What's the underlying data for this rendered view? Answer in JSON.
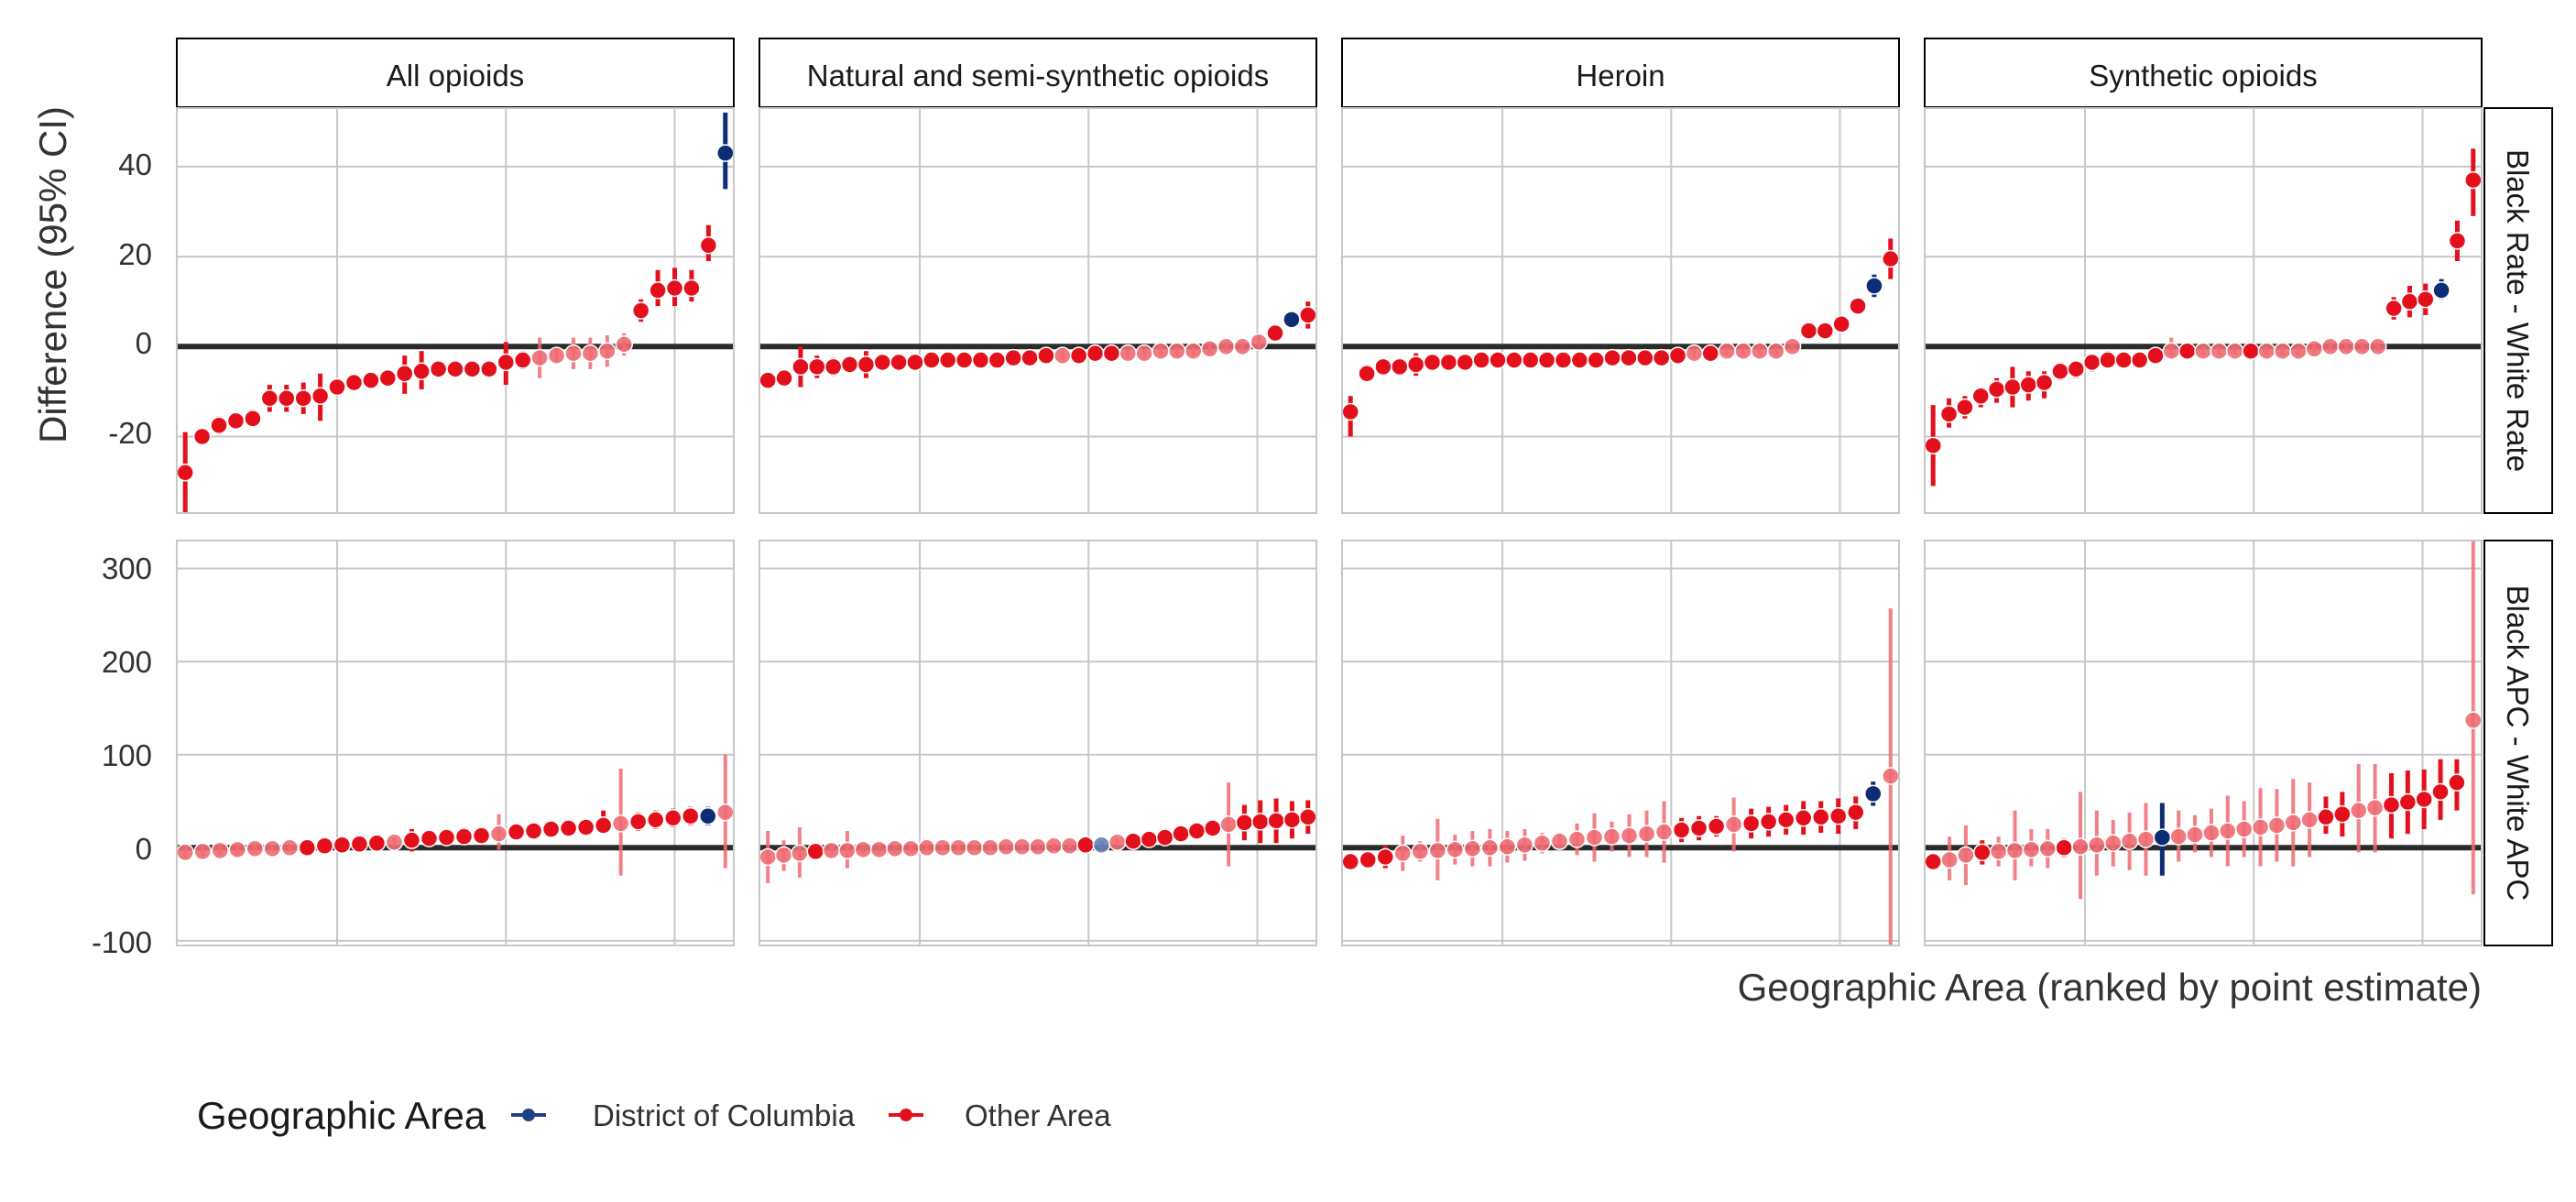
{
  "chart_data": {
    "type": "scatter",
    "variant": "faceted point-range (ranked)",
    "y_axis_label": "Difference (95% CI)",
    "x_axis_label": "Geographic Area (ranked by point estimate)",
    "columns": [
      "All opioids",
      "Natural and semi-synthetic opioids",
      "Heroin",
      "Synthetic opioids"
    ],
    "rows": [
      {
        "label": "Black Rate - White Rate",
        "ylim": [
          -37,
          53
        ],
        "yticks": [
          -20,
          0,
          20,
          40
        ],
        "tick_labels": [
          "-20",
          "0",
          "20",
          "40"
        ]
      },
      {
        "label": "Black APC - White APC",
        "ylim": [
          -105,
          330
        ],
        "yticks": [
          -100,
          0,
          100,
          200,
          300
        ],
        "tick_labels": [
          "-100",
          "0",
          "100",
          "200",
          "300"
        ]
      }
    ],
    "xlim": [
      0.5,
      33.5
    ],
    "x_grid": [
      10,
      20,
      30
    ],
    "legend": {
      "title": "Geographic Area",
      "position": "bottom-left",
      "entries": [
        {
          "label": "District of Columbia",
          "color": "#1f3f87"
        },
        {
          "label": "Other Area",
          "color": "#e3101b"
        }
      ]
    },
    "colors": {
      "dc": "#0c2c74",
      "other": "#e3101b",
      "other_ns": "#ee6b72",
      "dc_ns": "#6a80b6",
      "zero_line": "#2b2b2b",
      "grid": "#c8c8c8",
      "border": "#c8c8c8"
    },
    "panels": [
      {
        "row": 0,
        "col": 0,
        "est": [
          -28,
          -20,
          -17.5,
          -16.5,
          -16,
          -11.5,
          -11.5,
          -11.5,
          -11,
          -9,
          -8,
          -7.5,
          -7,
          -6,
          -5.5,
          -5,
          -5,
          -5,
          -5,
          -3.5,
          -3,
          -2.5,
          -2,
          -1.5,
          -1.5,
          -1,
          0.5,
          8,
          12.5,
          13,
          13,
          22.5,
          43
        ],
        "lo": [
          -38,
          -21.5,
          -19.5,
          -18,
          -17,
          -14.5,
          -14.5,
          -15,
          -16.5,
          -10,
          -8.5,
          -8,
          -8.5,
          -10.5,
          -9.5,
          -6.5,
          -6,
          -6,
          -6,
          -8.5,
          -5,
          -7,
          -3.5,
          -5,
          -5,
          -4.5,
          -2,
          5.5,
          9,
          9,
          10,
          19,
          35
        ],
        "hi": [
          -19,
          -19,
          -15.5,
          -15,
          -14,
          -8.5,
          -8.5,
          -8,
          -6,
          -8,
          -7.5,
          -7,
          -5.5,
          -2,
          -1,
          -3.5,
          -4,
          -4,
          -4,
          1,
          -1,
          2,
          -0.5,
          2,
          2,
          2.5,
          3,
          10.5,
          17,
          17.5,
          17,
          27,
          52
        ],
        "sig": [
          1,
          1,
          1,
          1,
          1,
          1,
          1,
          1,
          1,
          1,
          1,
          1,
          1,
          1,
          1,
          1,
          1,
          1,
          1,
          1,
          1,
          0,
          0,
          0,
          0,
          0,
          0,
          1,
          1,
          1,
          1,
          1,
          1
        ],
        "dc": [
          33
        ]
      },
      {
        "row": 0,
        "col": 1,
        "est": [
          -7.5,
          -7,
          -4.5,
          -4.5,
          -4.5,
          -4,
          -4,
          -3.5,
          -3.5,
          -3.5,
          -3,
          -3,
          -3,
          -3,
          -3,
          -2.5,
          -2.5,
          -2,
          -2,
          -2,
          -1.5,
          -1.5,
          -1.5,
          -1.5,
          -1,
          -1,
          -1,
          -0.5,
          0,
          0,
          1,
          3,
          6,
          7
        ],
        "lo": [
          -8.5,
          -8.5,
          -9,
          -7,
          -6.5,
          -5.5,
          -7,
          -5,
          -5,
          -5,
          -4,
          -4,
          -4,
          -4,
          -4,
          -3.5,
          -3.5,
          -3,
          -3,
          -3,
          -2.5,
          -2.5,
          -2.5,
          -2.5,
          -2,
          -2,
          -2,
          -1.5,
          -1,
          -1,
          -0.5,
          1.5,
          4.5,
          4
        ],
        "hi": [
          -6.5,
          -5.5,
          0,
          -2,
          -2.5,
          -2.5,
          -1,
          -2,
          -2,
          -2,
          -2,
          -2,
          -2,
          -2,
          -2,
          -1.5,
          -1.5,
          -1,
          -1,
          -1,
          -0.5,
          -0.5,
          -0.5,
          -0.5,
          0,
          0,
          0,
          0.5,
          1,
          1,
          2.5,
          4.5,
          7.5,
          10
        ],
        "sig": [
          1,
          1,
          1,
          1,
          1,
          1,
          1,
          1,
          1,
          1,
          1,
          1,
          1,
          1,
          1,
          1,
          1,
          1,
          0,
          1,
          1,
          1,
          0,
          0,
          0,
          0,
          0,
          0,
          0,
          0,
          0,
          1,
          1,
          1
        ],
        "dc": [
          33
        ]
      },
      {
        "row": 0,
        "col": 2,
        "est": [
          -14.5,
          -6,
          -4.5,
          -4.5,
          -4,
          -3.5,
          -3.5,
          -3.5,
          -3,
          -3,
          -3,
          -3,
          -3,
          -3,
          -3,
          -3,
          -2.5,
          -2.5,
          -2.5,
          -2.5,
          -2,
          -1.5,
          -1.5,
          -1,
          -1,
          -1,
          -1,
          0,
          3.5,
          3.5,
          5,
          9,
          13.5,
          19.5
        ],
        "lo": [
          -20,
          -7.5,
          -6,
          -5.5,
          -6.5,
          -5,
          -4.5,
          -4.5,
          -4,
          -4,
          -4,
          -4,
          -4,
          -4,
          -4,
          -4,
          -3.5,
          -3.5,
          -3.5,
          -3.5,
          -3,
          -2.5,
          -2.5,
          -2,
          -2,
          -2,
          -2,
          -1,
          2.5,
          2.5,
          3.5,
          7.5,
          11,
          15
        ],
        "hi": [
          -11,
          -4.5,
          -3,
          -3.5,
          -1.5,
          -2,
          -2.5,
          -2.5,
          -2,
          -2,
          -2,
          -2,
          -2,
          -2,
          -2,
          -2,
          -1.5,
          -1.5,
          -1.5,
          -1.5,
          -1,
          -0.5,
          -0.5,
          0,
          0,
          0,
          0,
          1,
          4.5,
          4.5,
          6.5,
          10.5,
          16,
          24
        ],
        "sig": [
          1,
          1,
          1,
          1,
          1,
          1,
          1,
          1,
          1,
          1,
          1,
          1,
          1,
          1,
          1,
          1,
          1,
          1,
          1,
          1,
          1,
          0,
          1,
          0,
          0,
          0,
          0,
          0,
          1,
          1,
          1,
          1,
          1,
          1
        ],
        "dc": [
          33
        ]
      },
      {
        "row": 0,
        "col": 3,
        "est": [
          -22,
          -15,
          -13.5,
          -11,
          -9.5,
          -9,
          -8.5,
          -8,
          -5.5,
          -5,
          -3.5,
          -3,
          -3,
          -3,
          -2,
          -1,
          -1,
          -1,
          -1,
          -1,
          -1,
          -1,
          -1,
          -1,
          -0.5,
          0,
          0,
          0,
          0,
          8.5,
          10,
          10.5,
          12.5,
          23.5,
          37
        ],
        "lo": [
          -31,
          -18,
          -16,
          -13.5,
          -12.5,
          -13.5,
          -12,
          -11.5,
          -7.5,
          -7,
          -5.5,
          -4.5,
          -4.5,
          -4,
          -3.5,
          -2,
          -2,
          -2,
          -2,
          -2,
          -2,
          -2,
          -2,
          -2,
          -1.5,
          -1,
          -1,
          -1,
          -1,
          6,
          6.5,
          7,
          10.5,
          19,
          29
        ],
        "hi": [
          -13,
          -11.5,
          -11,
          -9,
          -7,
          -4.5,
          -5.5,
          -5.5,
          -3.5,
          -3.5,
          -2,
          -1,
          -1.5,
          -2,
          -0.5,
          2,
          0,
          0,
          0,
          0,
          0,
          0,
          0,
          0,
          0.5,
          1,
          1,
          1,
          1,
          11,
          13.5,
          14,
          15,
          28,
          44
        ],
        "sig": [
          1,
          1,
          1,
          1,
          1,
          1,
          1,
          1,
          1,
          1,
          1,
          1,
          1,
          1,
          1,
          0,
          1,
          0,
          0,
          0,
          1,
          0,
          0,
          0,
          0,
          0,
          0,
          0,
          0,
          1,
          1,
          1,
          1,
          1,
          1
        ],
        "dc": [
          33
        ]
      },
      {
        "row": 1,
        "col": 0,
        "est": [
          -5,
          -4,
          -3,
          -2,
          -1,
          -1,
          0,
          0,
          2,
          3,
          4,
          5,
          6,
          8,
          10,
          11,
          12,
          13,
          15,
          17,
          18,
          20,
          21,
          22,
          24,
          26,
          28,
          30,
          32,
          34,
          34,
          38
        ],
        "lo": [
          -12,
          -10,
          -8,
          -7,
          -6,
          -5,
          -4,
          -4,
          -2,
          0,
          -1,
          2,
          2,
          -4,
          5,
          6,
          6,
          8,
          -2,
          12,
          12,
          13,
          14,
          14,
          16,
          -30,
          18,
          20,
          22,
          24,
          24,
          -22
        ],
        "hi": [
          2,
          2,
          2,
          3,
          4,
          3,
          4,
          4,
          6,
          6,
          9,
          8,
          10,
          20,
          15,
          16,
          18,
          18,
          36,
          22,
          24,
          27,
          28,
          30,
          40,
          85,
          38,
          40,
          42,
          44,
          44,
          100
        ],
        "sig": [
          0,
          0,
          0,
          0,
          0,
          0,
          0,
          1,
          1,
          1,
          1,
          1,
          0,
          1,
          1,
          1,
          1,
          1,
          0,
          1,
          1,
          1,
          1,
          1,
          1,
          0,
          1,
          1,
          1,
          1,
          1,
          0
        ],
        "dc": [
          31
        ]
      },
      {
        "row": 1,
        "col": 1,
        "est": [
          -10,
          -8,
          -6,
          -4,
          -3,
          -3,
          -2,
          -2,
          -1,
          -1,
          0,
          0,
          0,
          0,
          0,
          1,
          1,
          1,
          2,
          2,
          3,
          3,
          6,
          7,
          9,
          11,
          15,
          18,
          21,
          25,
          27,
          28,
          29,
          30,
          33
        ],
        "lo": [
          -38,
          -25,
          -32,
          -10,
          -8,
          -22,
          -6,
          -6,
          -5,
          -5,
          -4,
          -3,
          -3,
          -3,
          -3,
          -2,
          -2,
          -2,
          -1,
          -1,
          -1,
          -1,
          2,
          3,
          4,
          6,
          8,
          10,
          12,
          -20,
          8,
          5,
          5,
          10,
          15
        ],
        "hi": [
          18,
          8,
          22,
          2,
          2,
          18,
          2,
          2,
          3,
          3,
          4,
          3,
          3,
          3,
          3,
          4,
          4,
          4,
          5,
          5,
          7,
          7,
          10,
          11,
          14,
          16,
          22,
          26,
          30,
          70,
          46,
          51,
          53,
          50,
          51
        ],
        "sig": [
          0,
          0,
          0,
          1,
          0,
          0,
          0,
          0,
          0,
          0,
          0,
          0,
          0,
          0,
          0,
          0,
          0,
          0,
          0,
          0,
          1,
          0,
          0,
          1,
          1,
          1,
          1,
          1,
          1,
          0,
          1,
          1,
          1,
          1,
          1
        ],
        "dc": [
          22
        ]
      },
      {
        "row": 1,
        "col": 2,
        "est": [
          -15,
          -13,
          -10,
          -6,
          -4,
          -3,
          -2,
          -1,
          0,
          1,
          3,
          5,
          7,
          9,
          11,
          12,
          13,
          15,
          17,
          19,
          21,
          23,
          25,
          26,
          28,
          30,
          32,
          33,
          34,
          38,
          58,
          77
        ],
        "lo": [
          -20,
          -18,
          -22,
          -25,
          -15,
          -35,
          -18,
          -20,
          -20,
          -16,
          -14,
          -6,
          -2,
          -8,
          -15,
          -4,
          -10,
          -10,
          -16,
          6,
          8,
          12,
          -4,
          10,
          12,
          14,
          14,
          16,
          15,
          20,
          45,
          -105
        ],
        "hi": [
          -10,
          -8,
          2,
          13,
          7,
          31,
          14,
          18,
          20,
          18,
          20,
          16,
          16,
          26,
          37,
          28,
          36,
          40,
          50,
          32,
          34,
          34,
          54,
          42,
          44,
          46,
          50,
          50,
          53,
          55,
          71,
          257
        ],
        "sig": [
          1,
          1,
          1,
          0,
          0,
          0,
          0,
          0,
          0,
          0,
          0,
          0,
          0,
          0,
          0,
          0,
          0,
          0,
          0,
          1,
          1,
          1,
          0,
          1,
          1,
          1,
          1,
          1,
          1,
          1,
          1,
          0
        ],
        "dc": [
          31
        ]
      },
      {
        "row": 1,
        "col": 3,
        "est": [
          -15,
          -13,
          -8,
          -5,
          -4,
          -3,
          -2,
          -1,
          0,
          1,
          3,
          5,
          7,
          9,
          11,
          12,
          14,
          16,
          18,
          20,
          22,
          24,
          27,
          30,
          33,
          36,
          40,
          43,
          46,
          49,
          52,
          60,
          70,
          137
        ],
        "lo": [
          -20,
          -35,
          -40,
          -18,
          -20,
          -35,
          -20,
          -22,
          -10,
          -55,
          -30,
          -20,
          -24,
          -30,
          -30,
          -15,
          -5,
          -10,
          -20,
          -10,
          -20,
          -15,
          -20,
          -10,
          15,
          12,
          -5,
          -5,
          10,
          15,
          20,
          30,
          40,
          -50
        ],
        "hi": [
          -10,
          12,
          24,
          8,
          12,
          40,
          20,
          20,
          10,
          60,
          40,
          30,
          38,
          48,
          48,
          40,
          35,
          42,
          56,
          50,
          64,
          63,
          74,
          70,
          55,
          60,
          90,
          90,
          80,
          83,
          84,
          95,
          95,
          330
        ],
        "sig": [
          1,
          0,
          0,
          1,
          0,
          0,
          0,
          0,
          1,
          0,
          0,
          0,
          0,
          0,
          1,
          0,
          0,
          0,
          0,
          0,
          0,
          0,
          0,
          0,
          1,
          1,
          0,
          0,
          1,
          1,
          1,
          1,
          1,
          0
        ],
        "dc": [
          15
        ]
      }
    ]
  }
}
